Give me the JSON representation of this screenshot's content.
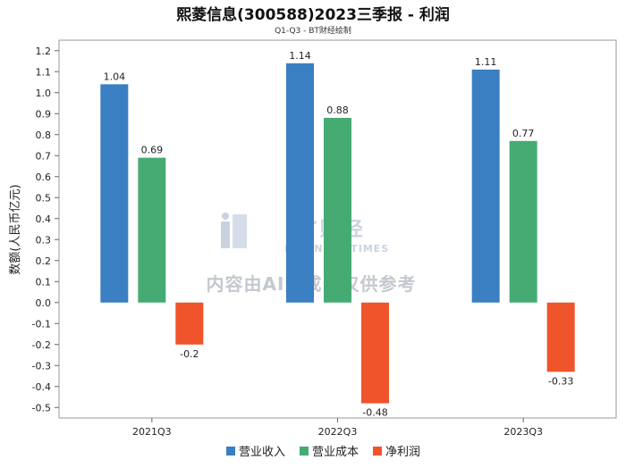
{
  "chart_data": {
    "type": "bar",
    "title": "熙菱信息(300588)2023三季报 - 利润",
    "subtitle": "Q1-Q3 - BT财经绘制",
    "xlabel": "",
    "ylabel": "数额(人民币亿元)",
    "categories": [
      "2021Q3",
      "2022Q3",
      "2023Q3"
    ],
    "series": [
      {
        "name": "营业收入",
        "color": "#3a7fc1",
        "values": [
          1.04,
          1.14,
          1.11
        ]
      },
      {
        "name": "营业成本",
        "color": "#45ab73",
        "values": [
          0.69,
          0.88,
          0.77
        ]
      },
      {
        "name": "净利润",
        "color": "#f0542a",
        "values": [
          -0.2,
          -0.48,
          -0.33
        ]
      }
    ],
    "ylim": [
      -0.55,
      1.25
    ],
    "yticks": [
      -0.5,
      -0.4,
      -0.3,
      -0.2,
      -0.1,
      0.0,
      0.1,
      0.2,
      0.3,
      0.4,
      0.5,
      0.6,
      0.7,
      0.8,
      0.9,
      1.0,
      1.1,
      1.2
    ],
    "ytick_labels": [
      "-0.5",
      "-0.4",
      "-0.3",
      "-0.2",
      "-0.1",
      "0.0",
      "0.1",
      "0.2",
      "0.3",
      "0.4",
      "0.5",
      "0.6",
      "0.7",
      "0.8",
      "0.9",
      "1.0",
      "1.1",
      "1.2"
    ],
    "legend_position": "bottom-center",
    "watermark": {
      "brand": "BT财经",
      "brand_en": "BUSINESS TIMES",
      "notice": "内容由AI生成，仅供参考"
    }
  }
}
